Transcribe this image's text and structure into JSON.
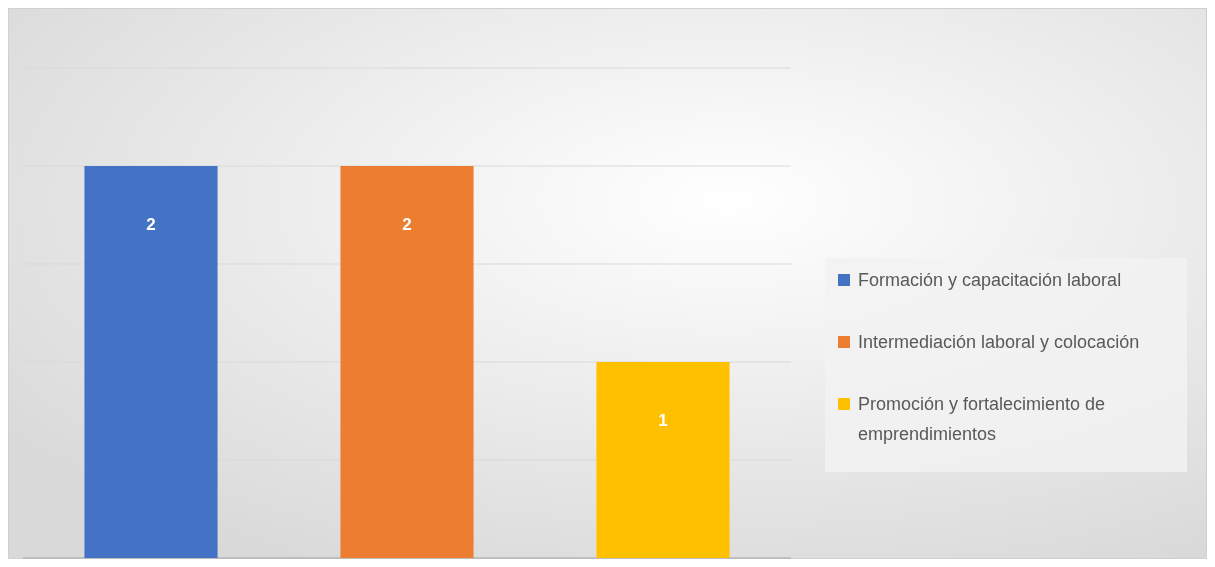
{
  "chart_data": {
    "type": "bar",
    "categories": [
      null,
      null,
      null
    ],
    "series": [
      {
        "name": "Formación y capacitación laboral",
        "color": "#4472c4",
        "values": [
          2,
          null,
          null
        ]
      },
      {
        "name": "Intermediación laboral y colocación",
        "color": "#ed7d31",
        "values": [
          null,
          2,
          null
        ]
      },
      {
        "name": "Promoción y fortalecimiento de emprendimientos",
        "color": "#ffc000",
        "values": [
          null,
          null,
          1
        ]
      }
    ],
    "stacked": true,
    "ylim": [
      0,
      2.5
    ],
    "yticks": [
      0,
      0.5,
      1,
      1.5,
      2,
      2.5
    ],
    "grid": "y",
    "tick_labels": false,
    "data_labels": true,
    "legend": "right"
  }
}
